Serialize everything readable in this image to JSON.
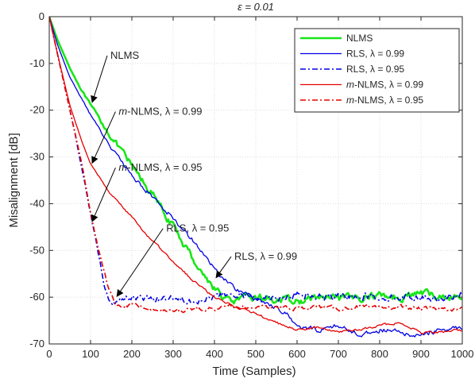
{
  "chart_data": {
    "type": "line",
    "title": "ε = 0.01",
    "xlabel": "Time (Samples)",
    "ylabel": "Misalignment [dB]",
    "xlim": [
      0,
      1000
    ],
    "ylim": [
      -70,
      0
    ],
    "xticks": [
      "0",
      "100",
      "200",
      "300",
      "400",
      "500",
      "600",
      "700",
      "800",
      "900",
      "1000"
    ],
    "yticks": [
      "0",
      "-10",
      "-20",
      "-30",
      "-40",
      "-50",
      "-60",
      "-70"
    ],
    "grid": true,
    "legend_position": "top-right",
    "series": [
      {
        "name": "NLMS",
        "color": "#19e619",
        "dash": "solid",
        "width": 2.6,
        "noise": 0.9,
        "x": [
          0,
          20,
          50,
          80,
          100,
          130,
          160,
          200,
          250,
          300,
          350,
          380,
          400,
          420,
          440,
          460,
          500,
          550,
          600,
          650,
          700,
          750,
          800,
          850,
          900,
          950,
          1000
        ],
        "y": [
          0,
          -5,
          -11,
          -16,
          -19,
          -23,
          -27,
          -32,
          -38,
          -45,
          -52,
          -56,
          -58,
          -60,
          -61,
          -60.5,
          -60,
          -60.5,
          -61,
          -60,
          -60.5,
          -60,
          -59.5,
          -60,
          -59,
          -60,
          -60
        ]
      },
      {
        "name": "RLS, λ = 0.99",
        "color": "#0000e6",
        "dash": "solid",
        "width": 1.3,
        "noise": 0.6,
        "x": [
          0,
          20,
          50,
          100,
          150,
          200,
          250,
          300,
          350,
          400,
          420,
          450,
          500,
          550,
          580,
          600,
          650,
          700,
          750,
          800,
          850,
          880,
          900,
          950,
          1000
        ],
        "y": [
          0,
          -6,
          -13,
          -21,
          -28,
          -34,
          -38.5,
          -43,
          -48,
          -54,
          -56,
          -58,
          -60.5,
          -62,
          -64,
          -66.5,
          -67,
          -66,
          -68,
          -67,
          -67.5,
          -68.5,
          -68,
          -67,
          -66.5
        ]
      },
      {
        "name": "RLS, λ = 0.95",
        "color": "#0000e6",
        "dash": "dashdot",
        "width": 1.6,
        "noise": 0.9,
        "x": [
          0,
          20,
          40,
          60,
          80,
          100,
          120,
          135,
          145,
          160,
          200,
          250,
          300,
          350,
          400,
          450,
          500,
          550,
          600,
          650,
          700,
          750,
          800,
          850,
          900,
          950,
          1000
        ],
        "y": [
          0,
          -8,
          -16,
          -24,
          -33,
          -42,
          -51,
          -58,
          -60.5,
          -61,
          -60,
          -60.5,
          -60,
          -60.5,
          -60,
          -59.5,
          -60,
          -60,
          -59.5,
          -60,
          -60,
          -59.5,
          -60,
          -60,
          -60,
          -60,
          -59.5
        ]
      },
      {
        "name": "m-NLMS, λ = 0.99",
        "color": "#e60000",
        "dash": "solid",
        "width": 1.3,
        "noise": 0.3,
        "x": [
          0,
          20,
          50,
          80,
          100,
          150,
          200,
          250,
          300,
          350,
          400,
          450,
          500,
          550,
          600,
          650,
          700,
          750,
          800,
          850,
          900,
          950,
          1000
        ],
        "y": [
          0,
          -8,
          -19,
          -27,
          -31.5,
          -38,
          -43,
          -48,
          -52.5,
          -56.5,
          -60,
          -62,
          -63.5,
          -65.5,
          -67,
          -66.5,
          -67.5,
          -67,
          -66,
          -65.5,
          -67.5,
          -67.5,
          -67
        ]
      },
      {
        "name": "m-NLMS, λ = 0.95",
        "color": "#e60000",
        "dash": "dashdot",
        "width": 1.6,
        "noise": 0.5,
        "x": [
          0,
          20,
          40,
          60,
          80,
          100,
          120,
          140,
          160,
          180,
          200,
          250,
          300,
          350,
          400,
          450,
          500,
          550,
          600,
          650,
          700,
          750,
          800,
          850,
          900,
          950,
          1000
        ],
        "y": [
          0,
          -8,
          -16,
          -24,
          -32,
          -42,
          -50,
          -57,
          -61.5,
          -62.5,
          -61.5,
          -62.5,
          -63,
          -62.5,
          -62.5,
          -62,
          -62.5,
          -62,
          -62.5,
          -62,
          -62.5,
          -62,
          -62.5,
          -62,
          -62.5,
          -62.5,
          -62.5
        ]
      }
    ],
    "annotations": [
      {
        "label_plain": "NLMS",
        "italic_prefix": "",
        "text_x": 225,
        "text_y": -9,
        "tip_x": 100,
        "tip_y": -18.5
      },
      {
        "label_plain": "-NLMS, λ = 0.99",
        "italic_prefix": "m",
        "text_x": 245,
        "text_y": -21,
        "tip_x": 100,
        "tip_y": -31.5
      },
      {
        "label_plain": "-NLMS, λ = 0.95",
        "italic_prefix": "m",
        "text_x": 245,
        "text_y": -33,
        "tip_x": 100,
        "tip_y": -44
      },
      {
        "label_plain": "RLS, λ = 0.95",
        "italic_prefix": "",
        "text_x": 360,
        "text_y": -46,
        "tip_x": 160,
        "tip_y": -60
      },
      {
        "label_plain": "RLS, λ = 0.99",
        "italic_prefix": "",
        "text_x": 525,
        "text_y": -52,
        "tip_x": 400,
        "tip_y": -56
      }
    ]
  },
  "legend_labels": [
    {
      "prefix": "",
      "text": "NLMS"
    },
    {
      "prefix": "",
      "text": "RLS, λ = 0.99"
    },
    {
      "prefix": "",
      "text": "RLS, λ = 0.95"
    },
    {
      "prefix": "m",
      "text": "-NLMS, λ = 0.99"
    },
    {
      "prefix": "m",
      "text": "-NLMS, λ = 0.95"
    }
  ]
}
